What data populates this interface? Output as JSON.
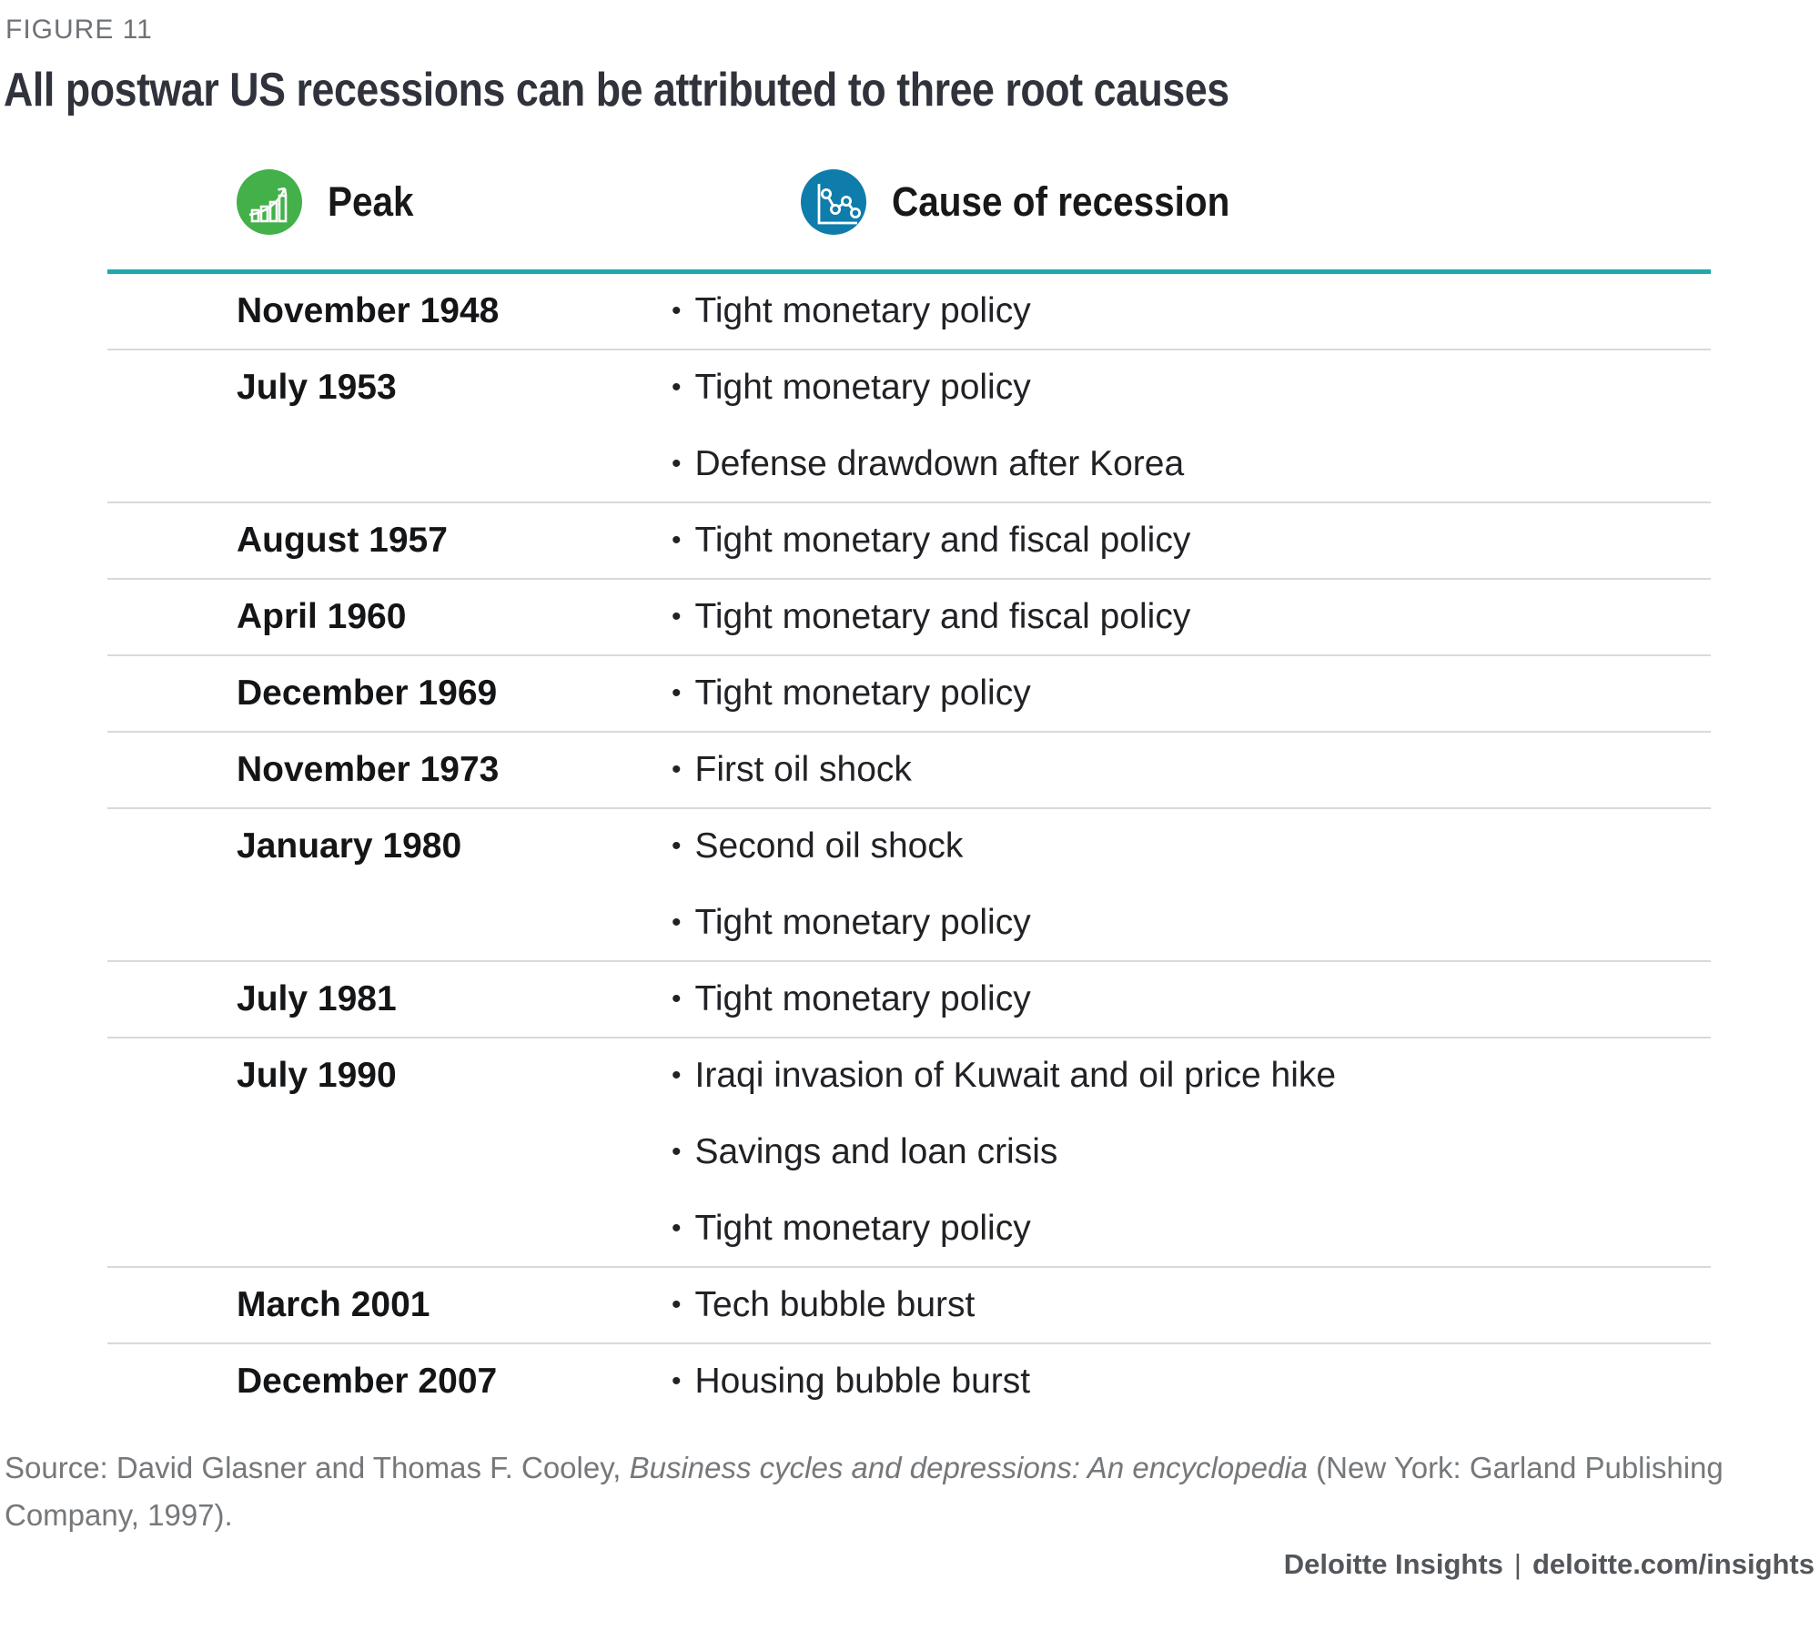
{
  "figure": {
    "label": "FIGURE 11",
    "title": "All postwar US recessions can be attributed to three root causes"
  },
  "chart_data": {
    "type": "table",
    "title": "All postwar US recessions can be attributed to three root causes",
    "columns": [
      "Peak",
      "Cause of recession"
    ],
    "rows": [
      {
        "peak": "November 1948",
        "causes": [
          "Tight monetary policy"
        ]
      },
      {
        "peak": "July 1953",
        "causes": [
          "Tight monetary policy",
          "Defense drawdown after Korea"
        ]
      },
      {
        "peak": "August 1957",
        "causes": [
          "Tight monetary and fiscal policy"
        ]
      },
      {
        "peak": "April 1960",
        "causes": [
          "Tight monetary and fiscal policy"
        ]
      },
      {
        "peak": "December 1969",
        "causes": [
          "Tight monetary policy"
        ]
      },
      {
        "peak": "November 1973",
        "causes": [
          "First oil shock"
        ]
      },
      {
        "peak": "January 1980",
        "causes": [
          "Second oil shock",
          "Tight monetary policy"
        ]
      },
      {
        "peak": "July 1981",
        "causes": [
          "Tight monetary policy"
        ]
      },
      {
        "peak": "July 1990",
        "causes": [
          "Iraqi invasion of Kuwait and oil price hike",
          "Savings and loan crisis",
          "Tight monetary policy"
        ]
      },
      {
        "peak": "March 2001",
        "causes": [
          "Tech bubble burst"
        ]
      },
      {
        "peak": "December 2007",
        "causes": [
          "Housing bubble burst"
        ]
      }
    ]
  },
  "icons": {
    "peak": "bar-chart-growth-icon",
    "cause": "line-chart-icon"
  },
  "source": {
    "prefix": "Source: David Glasner and Thomas F. Cooley, ",
    "italic": "Business cycles and depressions: An encyclopedia",
    "suffix": " (New York: Garland Publishing Company, 1997)."
  },
  "footer": {
    "brand": "Deloitte Insights",
    "separator": "|",
    "url": "deloitte.com/insights"
  },
  "colors": {
    "accent_teal": "#1fa9ac",
    "peak_green": "#43b049",
    "cause_blue": "#0e7dab",
    "title_text": "#30333b",
    "label_gray": "#6e7277",
    "source_gray": "#75787b",
    "footer_gray": "#53565a",
    "divider_gray": "#d9d9d9"
  }
}
